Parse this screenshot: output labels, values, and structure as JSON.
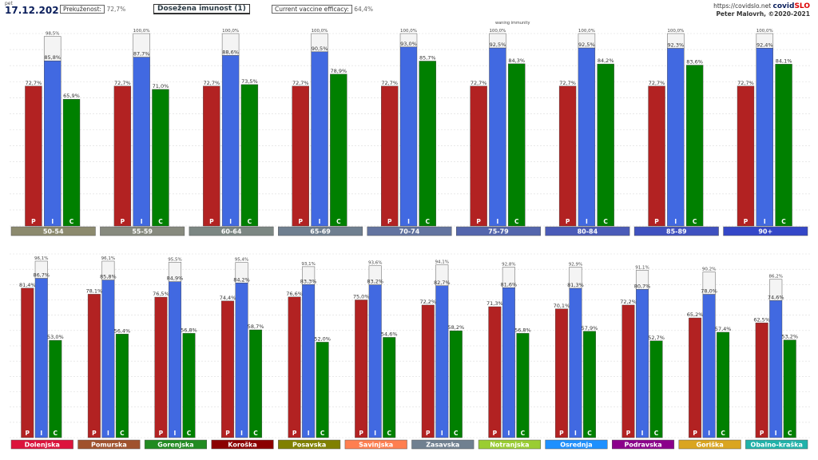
{
  "header": {
    "day": "pet",
    "date": "17.12.2021",
    "overcome_label": "Prekuženost:",
    "overcome_value": "72,7%",
    "title": "Dosežena imunost (1)",
    "efficacy_label": "Current vaccine efficacy:",
    "efficacy_value": "64,4%",
    "url": "https://covidslo.net",
    "brand_a": "covid",
    "brand_b": "SLO",
    "author": "Peter Malovrh, ©2020-2021",
    "waning_note": "waning immunity"
  },
  "colors": {
    "P": "#b22222",
    "I": "#4169e1",
    "C": "#008000"
  },
  "chart_data": [
    {
      "type": "bar",
      "title": "Dosežena imunost (1)",
      "xlabel": "",
      "ylabel": "",
      "ylim": [
        0,
        100
      ],
      "series_letters": [
        "P",
        "I",
        "C"
      ],
      "categories": [
        "50-54",
        "55-59",
        "60-64",
        "65-69",
        "70-74",
        "75-79",
        "80-84",
        "85-89",
        "90+"
      ],
      "category_colors": [
        "#8c8a6e",
        "#878a7e",
        "#7c8783",
        "#6f7f90",
        "#6374a0",
        "#5466ad",
        "#4a5bb8",
        "#3f51c0",
        "#3447c8"
      ],
      "series": [
        {
          "values": [
            72.7,
            72.7,
            72.7,
            72.7,
            72.7,
            72.7,
            72.7,
            72.7,
            72.7
          ]
        },
        {
          "values": [
            85.8,
            87.7,
            88.6,
            90.5,
            93.0,
            92.5,
            92.5,
            92.3,
            92.4
          ]
        },
        {
          "values": [
            65.9,
            71.0,
            73.5,
            78.9,
            85.7,
            84.3,
            84.2,
            83.6,
            84.1
          ]
        }
      ],
      "caps": [
        98.5,
        100.0,
        100.0,
        100.0,
        100.0,
        100.0,
        100.0,
        100.0,
        100.0
      ]
    },
    {
      "type": "bar",
      "xlabel": "",
      "ylabel": "",
      "ylim": [
        0,
        100
      ],
      "series_letters": [
        "P",
        "I",
        "C"
      ],
      "categories": [
        "Dolenjska",
        "Pomurska",
        "Gorenjska",
        "Koroška",
        "Posavska",
        "Savinjska",
        "Zasavska",
        "Notranjska",
        "Osrednja",
        "Podravska",
        "Goriška",
        "Obalno-kraška"
      ],
      "category_colors": [
        "#dc143c",
        "#a0522d",
        "#228b22",
        "#8b0000",
        "#808000",
        "#ff7f50",
        "#708090",
        "#9acd32",
        "#1e90ff",
        "#8b008b",
        "#daa520",
        "#20b2aa"
      ],
      "series": [
        {
          "values": [
            81.4,
            78.1,
            76.5,
            74.4,
            76.6,
            75.0,
            72.2,
            71.3,
            70.1,
            72.2,
            65.2,
            62.5
          ]
        },
        {
          "values": [
            86.7,
            85.8,
            84.9,
            84.2,
            83.3,
            83.2,
            82.7,
            81.6,
            81.3,
            80.7,
            78.0,
            74.6
          ]
        },
        {
          "values": [
            53.0,
            56.4,
            56.8,
            58.7,
            52.0,
            54.6,
            58.2,
            56.8,
            57.9,
            52.7,
            57.4,
            53.2
          ]
        }
      ],
      "caps": [
        96.1,
        96.1,
        95.5,
        95.4,
        93.1,
        93.6,
        94.1,
        92.8,
        92.9,
        91.1,
        90.2,
        86.2
      ]
    }
  ]
}
